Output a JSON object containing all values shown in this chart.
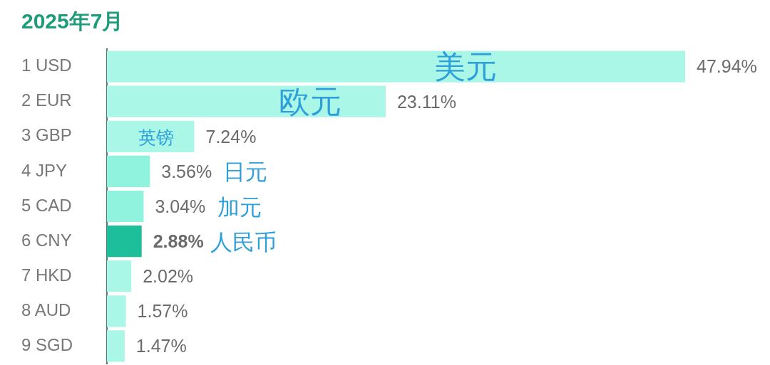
{
  "chart_data": {
    "type": "bar",
    "orientation": "horizontal",
    "title": "2025年7月",
    "categories": [
      "1 USD",
      "2 EUR",
      "3 GBP",
      "4 JPY",
      "5 CAD",
      "6 CNY",
      "7 HKD",
      "8 AUD",
      "9 SGD"
    ],
    "values": [
      47.94,
      23.11,
      7.24,
      3.56,
      3.04,
      2.88,
      2.02,
      1.57,
      1.47
    ],
    "value_labels": [
      "47.94%",
      "23.11%",
      "7.24%",
      "3.56%",
      "3.04%",
      "2.88%",
      "2.02%",
      "1.57%",
      "1.47%"
    ],
    "colors": [
      "#aaf7e7",
      "#aaf7e7",
      "#aaf7e7",
      "#8ff3dd",
      "#8ff3dd",
      "#1dbf9a",
      "#aaf7e7",
      "#aaf7e7",
      "#aaf7e7"
    ],
    "tick_labels": "y",
    "annotations": [
      "美元",
      "欧元",
      "英镑",
      "日元",
      "加元",
      "人民币"
    ]
  }
}
